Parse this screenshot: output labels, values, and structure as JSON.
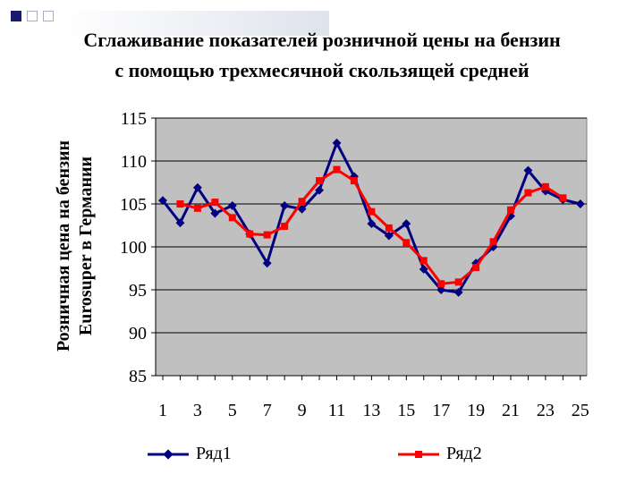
{
  "title": {
    "line1": "Сглаживание показателей розничной цены на бензин",
    "line2": "с помощью трехмесячной скользящей средней"
  },
  "ylabel": {
    "line1": "Розничная цена на бензин",
    "line2": "Eurosuper в Германии"
  },
  "chart_data": {
    "type": "line",
    "title": "Сглаживание показателей розничной цены на бензин с помощью трехмесячной скользящей средней",
    "xlabel": "",
    "ylabel": "Розничная цена на бензин Eurosuper в Германии",
    "xlim": [
      1,
      25
    ],
    "ylim": [
      85,
      115
    ],
    "x_ticks": [
      1,
      3,
      5,
      7,
      9,
      11,
      13,
      15,
      17,
      19,
      21,
      23,
      25
    ],
    "y_ticks": [
      85,
      90,
      95,
      100,
      105,
      110,
      115
    ],
    "grid": true,
    "legend": "bottom",
    "series": [
      {
        "name": "Ряд1",
        "color": "#000080",
        "marker": "diamond",
        "x": [
          1,
          2,
          3,
          4,
          5,
          6,
          7,
          8,
          9,
          10,
          11,
          12,
          13,
          14,
          15,
          16,
          17,
          18,
          19,
          20,
          21,
          22,
          23,
          24,
          25
        ],
        "values": [
          105.4,
          102.8,
          106.9,
          103.9,
          104.8,
          101.5,
          98.1,
          104.8,
          104.4,
          106.6,
          112.1,
          108.2,
          102.7,
          101.3,
          102.7,
          97.4,
          95.0,
          94.7,
          98.1,
          100.0,
          103.6,
          108.9,
          106.5,
          105.5,
          105.0
        ]
      },
      {
        "name": "Ряд2",
        "color": "#ff0000",
        "marker": "square",
        "x": [
          2,
          3,
          4,
          5,
          6,
          7,
          8,
          9,
          10,
          11,
          12,
          13,
          14,
          15,
          16,
          17,
          18,
          19,
          20,
          21,
          22,
          23,
          24
        ],
        "values": [
          105.0,
          104.5,
          105.2,
          103.4,
          101.5,
          101.4,
          102.4,
          105.3,
          107.7,
          109.0,
          107.7,
          104.1,
          102.2,
          100.5,
          98.4,
          95.7,
          95.9,
          97.6,
          100.6,
          104.3,
          106.3,
          107.0,
          105.7
        ]
      }
    ]
  }
}
